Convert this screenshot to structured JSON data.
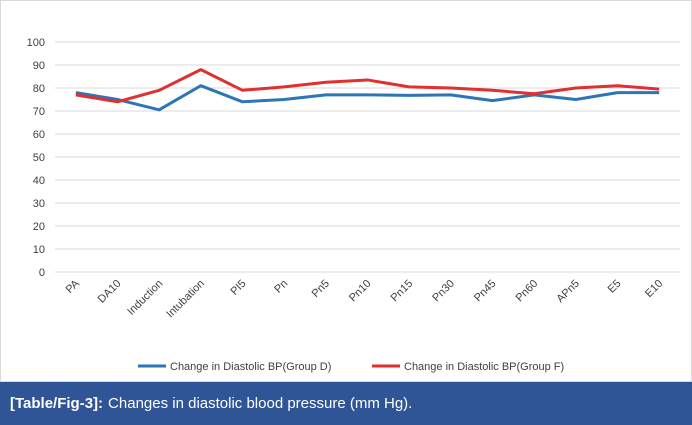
{
  "chart_data": {
    "type": "line",
    "categories": [
      "PA",
      "DA10",
      "Induction",
      "Intubation",
      "PI5",
      "Pn",
      "Pn5",
      "Pn10",
      "Pn15",
      "Pn30",
      "Pn45",
      "Pn60",
      "APn5",
      "E5",
      "E10"
    ],
    "series": [
      {
        "name": "Change in Diastolic BP(Group D)",
        "color": "#2e75b6",
        "values": [
          78,
          75,
          70.5,
          81,
          74,
          75,
          77,
          77,
          76.8,
          77,
          74.5,
          77,
          75,
          78,
          78
        ]
      },
      {
        "name": "Change in Diastolic BP(Group F)",
        "color": "#e03030",
        "values": [
          77,
          74,
          79,
          88,
          79,
          80.5,
          82.5,
          83.5,
          80.5,
          80,
          79,
          77.5,
          80,
          81,
          79.5
        ]
      }
    ],
    "ylim": [
      0,
      100
    ],
    "yticks": [
      0,
      10,
      20,
      30,
      40,
      50,
      60,
      70,
      80,
      90,
      100
    ],
    "grid": true,
    "legend": "bottom"
  },
  "caption": {
    "label": "[Table/Fig-3]:",
    "text": "Changes in diastolic blood pressure (mm Hg)."
  }
}
